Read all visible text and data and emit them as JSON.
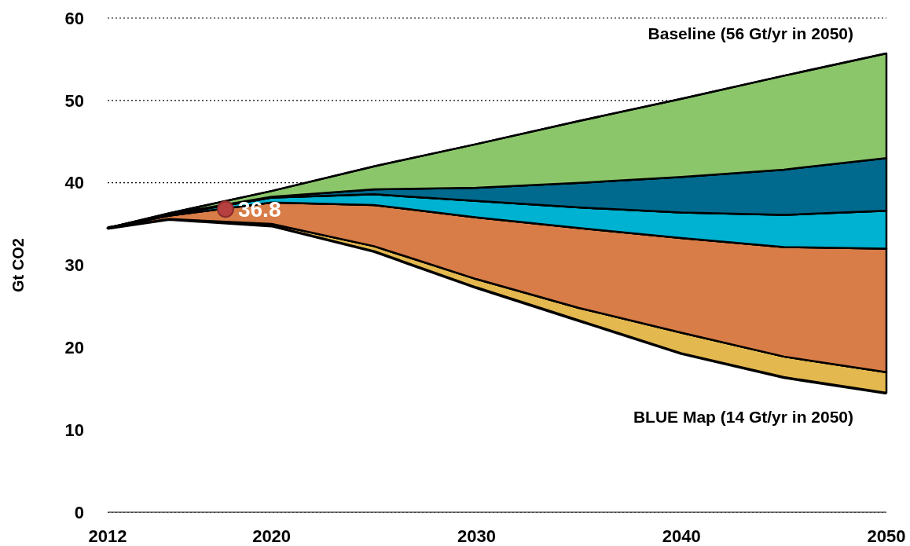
{
  "chart_data": {
    "type": "area",
    "ylabel": "Gt CO2",
    "x": [
      2012,
      2015,
      2020,
      2025,
      2030,
      2035,
      2040,
      2045,
      2050
    ],
    "stacked": true,
    "series": [
      {
        "color": "#ffffff",
        "values": [
          34.5,
          35.6,
          34.8,
          31.7,
          27.3,
          23.3,
          19.3,
          16.4,
          14.5
        ]
      },
      {
        "color": "#e3b84f",
        "values": [
          0,
          0,
          0.2,
          0.6,
          1.0,
          1.5,
          2.5,
          2.5,
          2.5
        ]
      },
      {
        "color": "#d87d48",
        "values": [
          0,
          0.4,
          2.6,
          5.0,
          7.5,
          9.7,
          11.5,
          13.3,
          15
        ]
      },
      {
        "color": "#00b2d1",
        "values": [
          0,
          0.1,
          0.6,
          1.3,
          2.0,
          2.5,
          3.1,
          3.9,
          4.6
        ]
      },
      {
        "color": "#006a8e",
        "values": [
          0,
          0.1,
          0.1,
          0.6,
          1.6,
          3.0,
          4.3,
          5.5,
          6.4
        ]
      },
      {
        "color": "#8cc66a",
        "values": [
          0,
          0.1,
          0.7,
          2.8,
          5.3,
          7.5,
          9.5,
          11.4,
          12.7
        ]
      },
      {
        "type": "scatter",
        "color": "#b5403f",
        "x": [
          2017.75
        ],
        "values": [
          36.8
        ],
        "value_labels": [
          "36.8"
        ]
      }
    ],
    "annotations": [
      "Baseline (56 Gt/yr in 2050)",
      "BLUE Map (14 Gt/yr in 2050)"
    ],
    "xlim": [
      2012,
      2050
    ],
    "xticks": [
      2012,
      2020,
      2030,
      2040,
      2050
    ],
    "ylim": [
      0,
      60
    ],
    "yticks": [
      0,
      10,
      20,
      30,
      40,
      50,
      60
    ],
    "grid": "y"
  }
}
